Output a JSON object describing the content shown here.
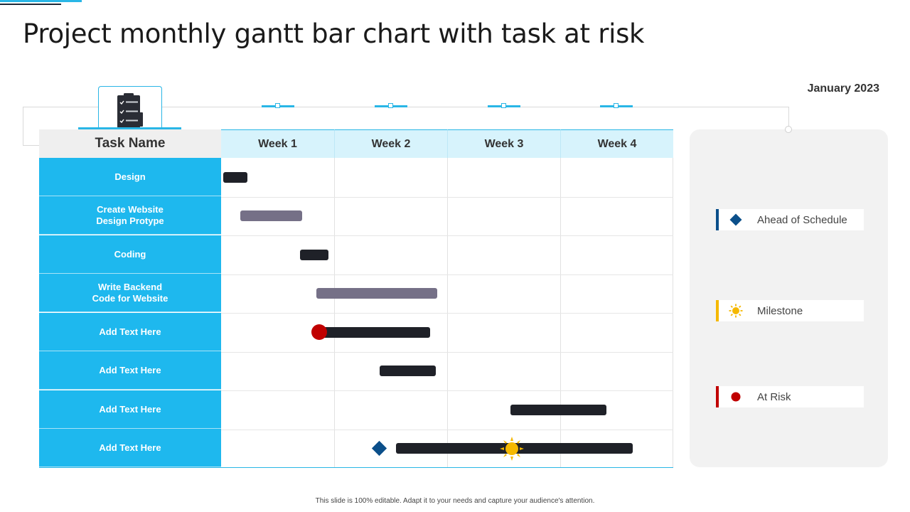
{
  "title": "Project monthly gantt bar chart with task at risk",
  "period": "January 2023",
  "footer": "This slide is 100% editable. Adapt it to your needs and capture your audience's attention.",
  "colors": {
    "accent": "#29b6e6",
    "task_cell": "#1eb8ee",
    "bar_dark": "#1f2128",
    "bar_gray": "#757087",
    "ahead": "#0b4f8a",
    "milestone": "#f5b800",
    "risk": "#c00000"
  },
  "chart_data": {
    "type": "gantt",
    "title": "Project monthly gantt bar chart with task at risk",
    "x_unit": "week",
    "xlim": [
      0,
      4
    ],
    "categories_header": "Task Name",
    "weeks": [
      "Week 1",
      "Week 2",
      "Week 3",
      "Week 4"
    ],
    "tasks": [
      {
        "name": "Design",
        "start": 0.02,
        "end": 0.23,
        "color": "dark"
      },
      {
        "name": "Create Website\nDesign Protype",
        "start": 0.17,
        "end": 0.72,
        "color": "gray"
      },
      {
        "name": "Coding",
        "start": 0.7,
        "end": 0.95,
        "color": "dark"
      },
      {
        "name": "Write Backend\nCode for Website",
        "start": 0.84,
        "end": 1.91,
        "color": "gray"
      },
      {
        "name": "Add Text Here",
        "start": 0.87,
        "end": 1.85,
        "color": "dark"
      },
      {
        "name": "Add Text Here",
        "start": 1.4,
        "end": 1.9,
        "color": "dark"
      },
      {
        "name": "Add Text Here",
        "start": 2.56,
        "end": 3.41,
        "color": "dark"
      },
      {
        "name": "Add Text Here",
        "start": 1.55,
        "end": 3.64,
        "color": "dark"
      }
    ],
    "markers": [
      {
        "task_index": 4,
        "type": "at-risk",
        "x": 0.87
      },
      {
        "task_index": 7,
        "type": "ahead-of-schedule",
        "x": 1.4
      },
      {
        "task_index": 7,
        "type": "milestone",
        "x": 2.57
      }
    ],
    "legend": [
      {
        "type": "ahead-of-schedule",
        "label": "Ahead of Schedule"
      },
      {
        "type": "milestone",
        "label": "Milestone"
      },
      {
        "type": "at-risk",
        "label": "At Risk"
      }
    ],
    "legend_position": "right"
  }
}
